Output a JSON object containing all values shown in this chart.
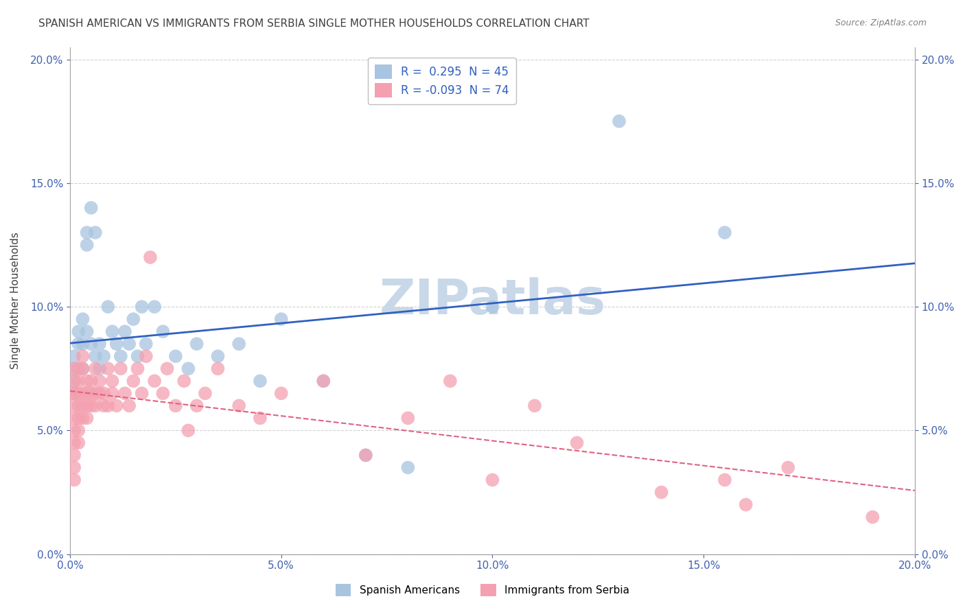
{
  "title": "SPANISH AMERICAN VS IMMIGRANTS FROM SERBIA SINGLE MOTHER HOUSEHOLDS CORRELATION CHART",
  "source": "Source: ZipAtlas.com",
  "ylabel": "Single Mother Households",
  "blue_R": 0.295,
  "blue_N": 45,
  "pink_R": -0.093,
  "pink_N": 74,
  "blue_color": "#a8c4e0",
  "pink_color": "#f4a0b0",
  "blue_line_color": "#3060c0",
  "pink_line_color": "#e06080",
  "watermark": "ZIPatlas",
  "xmin": 0.0,
  "xmax": 0.2,
  "ymin": 0.0,
  "ymax": 0.205,
  "yticks": [
    0.0,
    0.05,
    0.1,
    0.15,
    0.2
  ],
  "xticks": [
    0.0,
    0.05,
    0.1,
    0.15,
    0.2
  ],
  "blue_x": [
    0.001,
    0.001,
    0.001,
    0.001,
    0.002,
    0.002,
    0.002,
    0.003,
    0.003,
    0.003,
    0.004,
    0.004,
    0.004,
    0.005,
    0.005,
    0.006,
    0.006,
    0.007,
    0.007,
    0.008,
    0.009,
    0.01,
    0.011,
    0.012,
    0.013,
    0.014,
    0.015,
    0.016,
    0.017,
    0.018,
    0.02,
    0.022,
    0.025,
    0.028,
    0.03,
    0.035,
    0.04,
    0.045,
    0.05,
    0.06,
    0.07,
    0.08,
    0.1,
    0.13,
    0.155
  ],
  "blue_y": [
    0.08,
    0.075,
    0.07,
    0.065,
    0.09,
    0.085,
    0.075,
    0.095,
    0.085,
    0.075,
    0.13,
    0.125,
    0.09,
    0.14,
    0.085,
    0.13,
    0.08,
    0.085,
    0.075,
    0.08,
    0.1,
    0.09,
    0.085,
    0.08,
    0.09,
    0.085,
    0.095,
    0.08,
    0.1,
    0.085,
    0.1,
    0.09,
    0.08,
    0.075,
    0.085,
    0.08,
    0.085,
    0.07,
    0.095,
    0.07,
    0.04,
    0.035,
    0.1,
    0.175,
    0.13
  ],
  "pink_x": [
    0.001,
    0.001,
    0.001,
    0.001,
    0.001,
    0.001,
    0.001,
    0.001,
    0.001,
    0.001,
    0.001,
    0.002,
    0.002,
    0.002,
    0.002,
    0.002,
    0.002,
    0.002,
    0.003,
    0.003,
    0.003,
    0.003,
    0.003,
    0.004,
    0.004,
    0.004,
    0.004,
    0.005,
    0.005,
    0.005,
    0.006,
    0.006,
    0.006,
    0.007,
    0.007,
    0.008,
    0.008,
    0.009,
    0.009,
    0.01,
    0.01,
    0.011,
    0.012,
    0.013,
    0.014,
    0.015,
    0.016,
    0.017,
    0.018,
    0.019,
    0.02,
    0.022,
    0.023,
    0.025,
    0.027,
    0.028,
    0.03,
    0.032,
    0.035,
    0.04,
    0.045,
    0.05,
    0.06,
    0.07,
    0.08,
    0.09,
    0.1,
    0.11,
    0.12,
    0.14,
    0.155,
    0.16,
    0.17,
    0.19
  ],
  "pink_y": [
    0.065,
    0.06,
    0.055,
    0.05,
    0.045,
    0.04,
    0.035,
    0.03,
    0.07,
    0.065,
    0.075,
    0.06,
    0.055,
    0.05,
    0.045,
    0.07,
    0.065,
    0.075,
    0.065,
    0.06,
    0.055,
    0.08,
    0.075,
    0.06,
    0.055,
    0.07,
    0.065,
    0.06,
    0.07,
    0.065,
    0.065,
    0.06,
    0.075,
    0.065,
    0.07,
    0.06,
    0.065,
    0.06,
    0.075,
    0.065,
    0.07,
    0.06,
    0.075,
    0.065,
    0.06,
    0.07,
    0.075,
    0.065,
    0.08,
    0.12,
    0.07,
    0.065,
    0.075,
    0.06,
    0.07,
    0.05,
    0.06,
    0.065,
    0.075,
    0.06,
    0.055,
    0.065,
    0.07,
    0.04,
    0.055,
    0.07,
    0.03,
    0.06,
    0.045,
    0.025,
    0.03,
    0.02,
    0.035,
    0.015
  ],
  "legend_blue_label": "Spanish Americans",
  "legend_pink_label": "Immigrants from Serbia",
  "title_color": "#404040",
  "source_color": "#808080",
  "watermark_color": "#c8d8e8",
  "grid_color": "#d0d0d0",
  "tick_label_color": "#4060b0",
  "legend_text_color": "#3060c0"
}
